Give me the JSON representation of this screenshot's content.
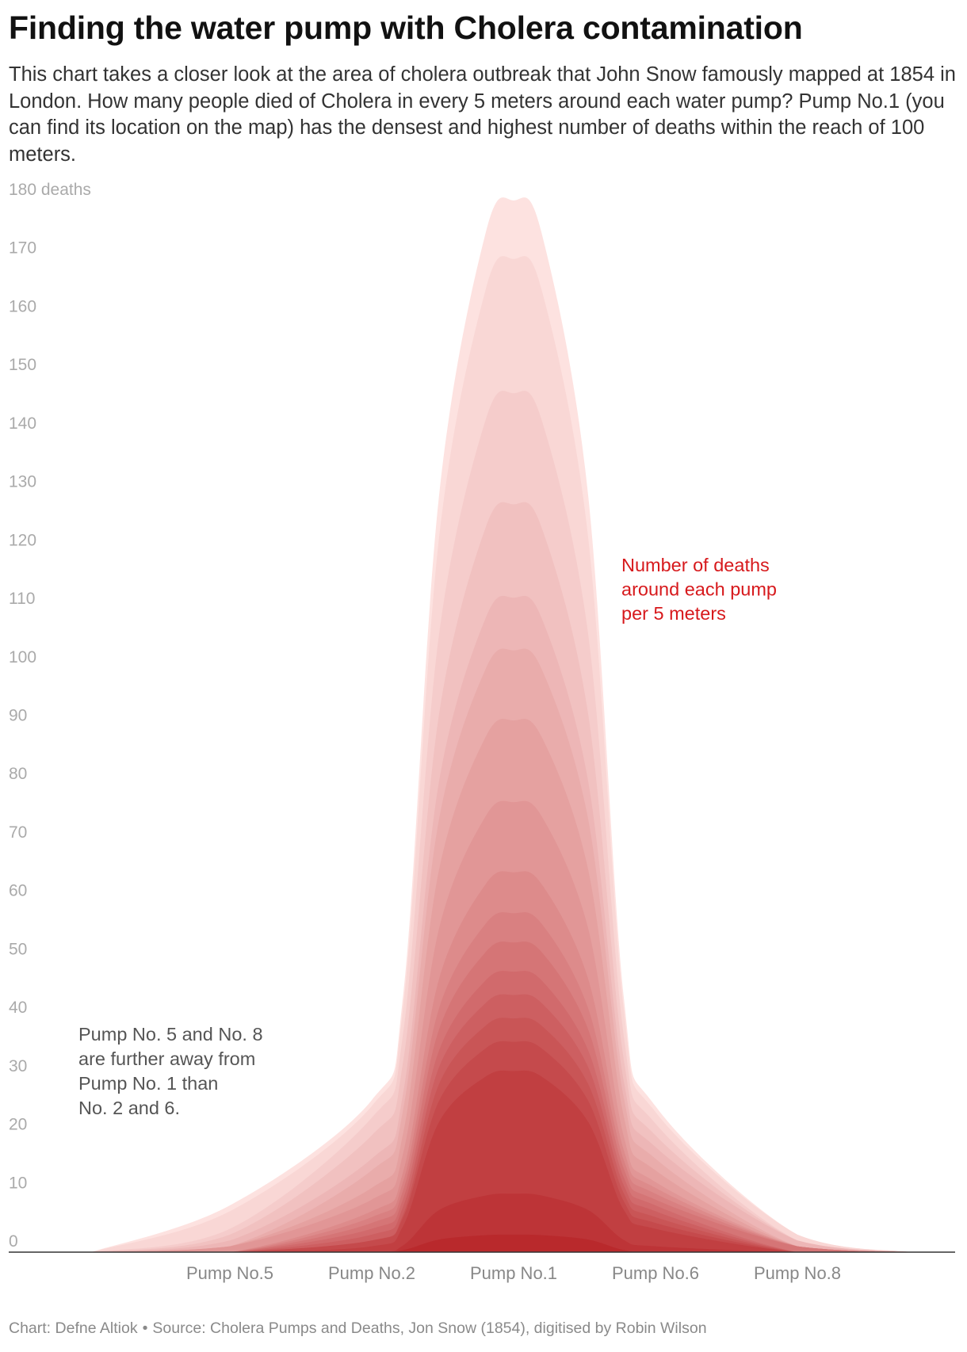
{
  "title": "Finding the water pump with Cholera contamination",
  "subtitle": "This chart takes a closer look at the area of cholera outbreak that John Snow famously mapped at 1854 in London. How many people died of Cholera in every 5 meters around each water pump? Pump No.1 (you can find its location on the map) has the densest and highest number of deaths within the reach of 100 meters.",
  "chart_data": {
    "type": "area",
    "categories": [
      "Pump No.5",
      "Pump No.2",
      "Pump No.1",
      "Pump No.6",
      "Pump No.8"
    ],
    "ylim": [
      0,
      180
    ],
    "yticks": [
      0,
      10,
      20,
      30,
      40,
      50,
      60,
      70,
      80,
      90,
      100,
      110,
      120,
      130,
      140,
      150,
      160,
      170,
      180
    ],
    "ytick_labels": [
      "0",
      "10",
      "20",
      "30",
      "40",
      "50",
      "60",
      "70",
      "80",
      "90",
      "100",
      "110",
      "120",
      "130",
      "140",
      "150",
      "160",
      "170",
      "180 deaths"
    ],
    "series": [
      {
        "peak": 180,
        "tails": {
          "Pump No.5": 8,
          "Pump No.2": 26,
          "Pump No.6": 25,
          "Pump No.8": 3
        }
      },
      {
        "peak": 170,
        "tails": {
          "Pump No.5": 7,
          "Pump No.2": 25,
          "Pump No.6": 24,
          "Pump No.8": 3
        }
      },
      {
        "peak": 147,
        "tails": {
          "Pump No.5": 4,
          "Pump No.2": 23,
          "Pump No.6": 22,
          "Pump No.8": 2
        }
      },
      {
        "peak": 128,
        "tails": {
          "Pump No.5": 3,
          "Pump No.2": 20,
          "Pump No.6": 20,
          "Pump No.8": 2
        }
      },
      {
        "peak": 112,
        "tails": {
          "Pump No.5": 2,
          "Pump No.2": 16,
          "Pump No.6": 18,
          "Pump No.8": 2
        }
      },
      {
        "peak": 103,
        "tails": {
          "Pump No.5": 1,
          "Pump No.2": 14,
          "Pump No.6": 16,
          "Pump No.8": 1
        }
      },
      {
        "peak": 91,
        "tails": {
          "Pump No.5": 1,
          "Pump No.2": 11,
          "Pump No.6": 14,
          "Pump No.8": 1
        }
      },
      {
        "peak": 77,
        "tails": {
          "Pump No.5": 1,
          "Pump No.2": 9,
          "Pump No.6": 12,
          "Pump No.8": 1
        }
      },
      {
        "peak": 65,
        "tails": {
          "Pump No.5": 0,
          "Pump No.2": 7,
          "Pump No.6": 11,
          "Pump No.8": 1
        }
      },
      {
        "peak": 58,
        "tails": {
          "Pump No.5": 0,
          "Pump No.2": 6,
          "Pump No.6": 10,
          "Pump No.8": 1
        }
      },
      {
        "peak": 53,
        "tails": {
          "Pump No.5": 0,
          "Pump No.2": 5,
          "Pump No.6": 9,
          "Pump No.8": 1
        }
      },
      {
        "peak": 48,
        "tails": {
          "Pump No.5": 0,
          "Pump No.2": 4,
          "Pump No.6": 8,
          "Pump No.8": 0
        }
      },
      {
        "peak": 44,
        "tails": {
          "Pump No.5": 0,
          "Pump No.2": 3,
          "Pump No.6": 7,
          "Pump No.8": 0
        }
      },
      {
        "peak": 40,
        "tails": {
          "Pump No.5": 0,
          "Pump No.2": 2,
          "Pump No.6": 6,
          "Pump No.8": 0
        }
      },
      {
        "peak": 36,
        "tails": {
          "Pump No.5": 0,
          "Pump No.2": 2,
          "Pump No.6": 5,
          "Pump No.8": 0
        }
      },
      {
        "peak": 31,
        "tails": {
          "Pump No.5": 0,
          "Pump No.2": 1,
          "Pump No.6": 4,
          "Pump No.8": 0
        }
      },
      {
        "peak": 10,
        "tails": {
          "Pump No.5": 0,
          "Pump No.2": 0,
          "Pump No.6": 1,
          "Pump No.8": 0
        }
      },
      {
        "peak": 3,
        "tails": {
          "Pump No.5": 0,
          "Pump No.2": 0,
          "Pump No.6": 0,
          "Pump No.8": 0
        }
      }
    ],
    "annotations": [
      {
        "text": "Number of deaths around each pump per 5 meters",
        "lines": [
          "Number of deaths",
          "around each pump",
          "per 5 meters"
        ],
        "color": "#d7191c"
      },
      {
        "text": "Pump No. 5 and No. 8 are further away from Pump No. 1 than No. 2 and 6.",
        "lines": [
          "Pump No. 5 and No. 8",
          "are further away from",
          "Pump No. 1 than",
          "No. 2 and 6."
        ],
        "color": "#555555"
      }
    ],
    "colors": {
      "lightest": "#fde2e0",
      "darkest": "#b9292c",
      "axis": "#333333",
      "tick_label": "#aaaaaa",
      "category_label": "#888888"
    }
  },
  "source": {
    "chart_credit": "Chart: Defne Altiok",
    "separator": "•",
    "source_text": "Source: Cholera Pumps and Deaths, Jon Snow (1854), digitised by Robin Wilson"
  }
}
